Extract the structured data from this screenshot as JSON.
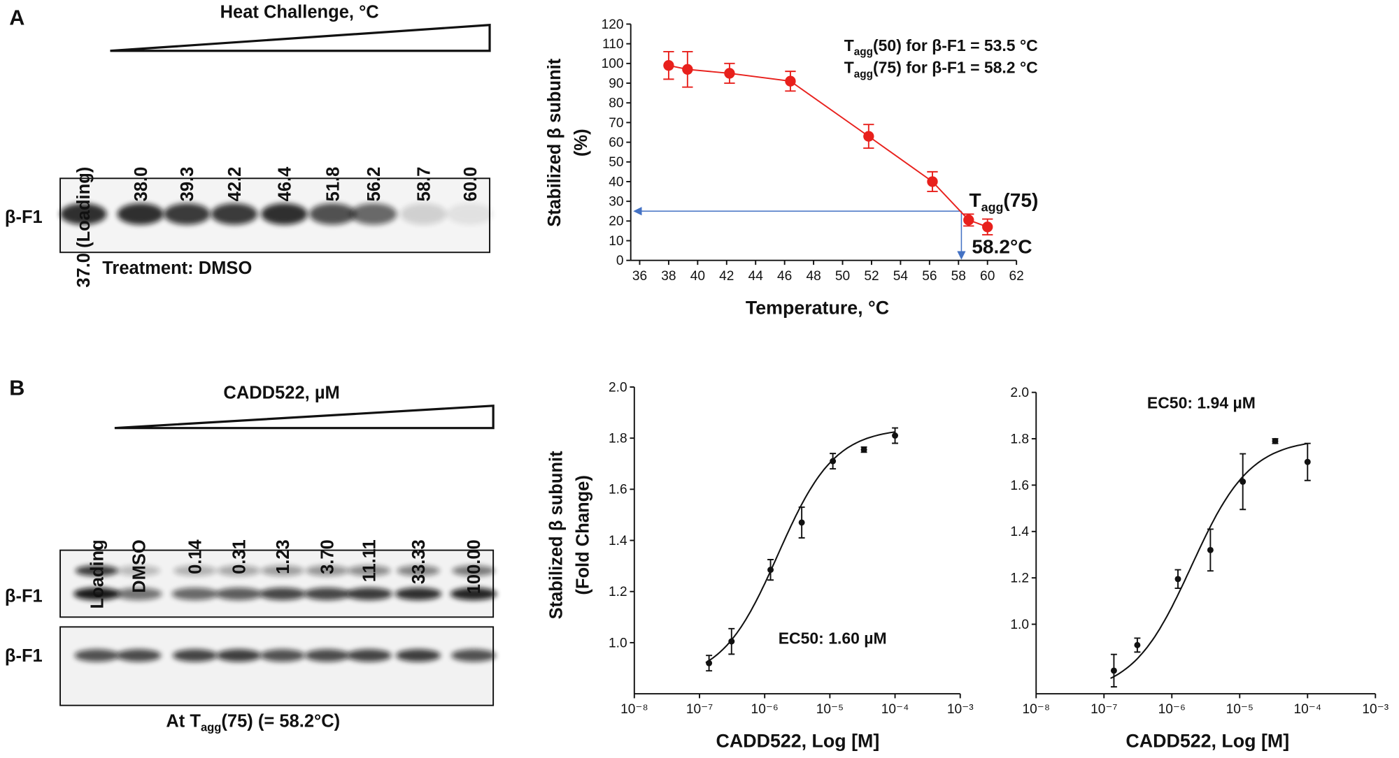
{
  "blots": {
    "A": {
      "panel_label": "A",
      "title": "Heat Challenge, °C",
      "lanes": [
        "37.0 (Loading)",
        "38.0",
        "39.3",
        "42.2",
        "46.4",
        "51.8",
        "56.2",
        "58.7",
        "60.0"
      ],
      "rows": [
        "β-F1"
      ],
      "caption": "Treatment: DMSO"
    },
    "B": {
      "panel_label": "B",
      "title": "CADD522, µM",
      "lanes": [
        "Loading",
        "DMSO",
        "0.14",
        "0.31",
        "1.23",
        "3.70",
        "11.11",
        "33.33",
        "100.00"
      ],
      "rows": [
        "β-F1",
        "β-F1"
      ],
      "caption": {
        "main": "At T",
        "sub": "agg",
        "rest": "(75) (= 58.2°C)"
      }
    }
  },
  "chart_data": [
    {
      "type": "line",
      "color": "#e8201c",
      "x": [
        38.0,
        39.3,
        42.2,
        46.4,
        51.8,
        56.2,
        58.7,
        60.0
      ],
      "values": [
        99,
        97,
        95,
        91,
        63,
        40,
        20.5,
        17
      ],
      "errors": [
        7,
        9,
        5,
        5,
        6,
        5,
        3,
        4
      ],
      "xlim": [
        36,
        62
      ],
      "xticks": [
        36,
        38,
        40,
        42,
        44,
        46,
        48,
        50,
        52,
        54,
        56,
        58,
        60,
        62
      ],
      "ylim": [
        0,
        120
      ],
      "yticks": [
        0,
        10,
        20,
        30,
        40,
        50,
        60,
        70,
        80,
        90,
        100,
        110,
        120
      ],
      "xlabel": "Temperature, °C",
      "ylabel": [
        "Stabilized β subunit",
        "(%)"
      ],
      "annotations": [
        {
          "main": "T",
          "sub": "agg",
          "rest": "(50) for β-F1 = 53.5 °C"
        },
        {
          "main": "T",
          "sub": "agg",
          "rest": "(75) for β-F1 = 58.2 °C"
        }
      ],
      "marker": {
        "x": 58.2,
        "y": 25,
        "color": "#4472c4",
        "label": {
          "main": "T",
          "sub": "agg",
          "rest": "(75)"
        },
        "x_label": "58.2°C"
      }
    },
    {
      "type": "scatter",
      "log_x": true,
      "color": "#111111",
      "x": [
        1.4e-07,
        3.1e-07,
        1.23e-06,
        3.7e-06,
        1.111e-05,
        3.333e-05,
        0.0001
      ],
      "values": [
        0.92,
        1.005,
        1.285,
        1.47,
        1.71,
        1.755,
        1.81
      ],
      "errors": [
        0.03,
        0.05,
        0.04,
        0.06,
        0.03,
        0.01,
        0.03
      ],
      "fit": {
        "bottom": 0.85,
        "top": 1.84,
        "ec50": 1.6e-06,
        "hill": 1
      },
      "xlim": [
        1e-08,
        0.001
      ],
      "xticks": [
        {
          "value": 1e-08,
          "label": "10⁻⁸"
        },
        {
          "value": 1e-07,
          "label": "10⁻⁷"
        },
        {
          "value": 1e-06,
          "label": "10⁻⁶"
        },
        {
          "value": 1e-05,
          "label": "10⁻⁵"
        },
        {
          "value": 0.0001,
          "label": "10⁻⁴"
        },
        {
          "value": 0.001,
          "label": "10⁻³"
        }
      ],
      "ylim": [
        0.8,
        2.0
      ],
      "yticks": [
        {
          "value": 1,
          "label": "1.0"
        },
        1.2,
        1.4,
        1.6,
        1.8,
        {
          "value": 2,
          "label": "2.0"
        }
      ],
      "xlabel": "CADD522,  Log [M]",
      "ylabel": [
        "Stabilized β subunit",
        "(Fold Change)"
      ],
      "annotations": [
        "EC50: 1.60 µM"
      ]
    },
    {
      "type": "scatter",
      "log_x": true,
      "color": "#111111",
      "x": [
        1.4e-07,
        3.1e-07,
        1.23e-06,
        3.7e-06,
        1.111e-05,
        3.333e-05,
        0.0001
      ],
      "values": [
        0.8,
        0.91,
        1.195,
        1.32,
        1.615,
        1.79,
        1.7
      ],
      "errors": [
        0.07,
        0.03,
        0.04,
        0.09,
        0.12,
        0.01,
        0.08
      ],
      "fit": {
        "bottom": 0.7,
        "top": 1.8,
        "ec50": 1.94e-06,
        "hill": 1
      },
      "xlim": [
        1e-08,
        0.001
      ],
      "xticks": [
        {
          "value": 1e-08,
          "label": "10⁻⁸"
        },
        {
          "value": 1e-07,
          "label": "10⁻⁷"
        },
        {
          "value": 1e-06,
          "label": "10⁻⁶"
        },
        {
          "value": 1e-05,
          "label": "10⁻⁵"
        },
        {
          "value": 0.0001,
          "label": "10⁻⁴"
        },
        {
          "value": 0.001,
          "label": "10⁻³"
        }
      ],
      "ylim": [
        0.7,
        2.0
      ],
      "yticks": [
        {
          "value": 1,
          "label": "1.0"
        },
        1.2,
        1.4,
        1.6,
        1.8,
        {
          "value": 2,
          "label": "2.0"
        }
      ],
      "xlabel": "CADD522,  Log [M]",
      "annotations": [
        "EC50: 1.94 µM"
      ]
    }
  ]
}
